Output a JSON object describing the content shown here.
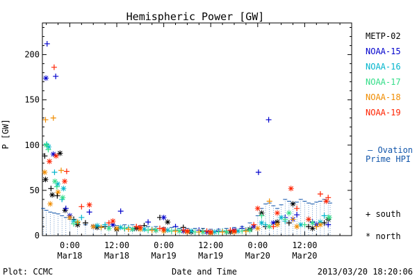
{
  "chart_data": {
    "type": "scatter",
    "title": "Hemispheric Power [GW]",
    "ylabel": "P [GW]",
    "xlabel": "Date and Time",
    "x_unit": "hours since 2013-03-18 00:00",
    "xlim": [
      -7,
      72
    ],
    "ylim": [
      0,
      235
    ],
    "y_ticks": [
      0,
      50,
      100,
      150,
      200
    ],
    "x_ticks": [
      {
        "x": 0,
        "time": "0:00",
        "date": "Mar18"
      },
      {
        "x": 12,
        "time": "12:00",
        "date": "Mar18"
      },
      {
        "x": 24,
        "time": "0:00",
        "date": "Mar19"
      },
      {
        "x": 36,
        "time": "12:00",
        "date": "Mar19"
      },
      {
        "x": 48,
        "time": "0:00",
        "date": "Mar20"
      },
      {
        "x": 60,
        "time": "12:00",
        "date": "Mar20"
      }
    ],
    "legend": [
      "METP-02",
      "NOAA-15",
      "NOAA-16",
      "NOAA-17",
      "NOAA-18",
      "NOAA-19"
    ],
    "ovation_label_1": "— Ovation",
    "ovation_label_2": "Prime HPI",
    "marker_south_label": "+ south",
    "marker_north_label": "* north",
    "ovation_prime_hpi": [
      [
        -6.8,
        30
      ],
      [
        -6,
        28
      ],
      [
        -5,
        26
      ],
      [
        -4,
        25
      ],
      [
        -3,
        24
      ],
      [
        -2,
        22
      ],
      [
        -1,
        20
      ],
      [
        0,
        18
      ],
      [
        2,
        14
      ],
      [
        4,
        12
      ],
      [
        6,
        11
      ],
      [
        8,
        10
      ],
      [
        10,
        10
      ],
      [
        12,
        11
      ],
      [
        14,
        12
      ],
      [
        16,
        12
      ],
      [
        18,
        11
      ],
      [
        20,
        10
      ],
      [
        22,
        10
      ],
      [
        24,
        9
      ],
      [
        26,
        9
      ],
      [
        28,
        8
      ],
      [
        30,
        8
      ],
      [
        32,
        8
      ],
      [
        34,
        8
      ],
      [
        36,
        7
      ],
      [
        38,
        7
      ],
      [
        40,
        8
      ],
      [
        42,
        9
      ],
      [
        44,
        10
      ],
      [
        46,
        14
      ],
      [
        48,
        22
      ],
      [
        49,
        30
      ],
      [
        50,
        35
      ],
      [
        51,
        36
      ],
      [
        52,
        33
      ],
      [
        53,
        30
      ],
      [
        54,
        34
      ],
      [
        55,
        40
      ],
      [
        56,
        38
      ],
      [
        57,
        36
      ],
      [
        58,
        37
      ],
      [
        59,
        40
      ],
      [
        60,
        38
      ],
      [
        61,
        36
      ],
      [
        62,
        35
      ],
      [
        63,
        37
      ],
      [
        64,
        38
      ],
      [
        65,
        40
      ],
      [
        66,
        38
      ],
      [
        66.5,
        36
      ]
    ],
    "series": [
      {
        "name": "METP-02",
        "color": "#000000",
        "south": [
          [
            -6.4,
            88
          ],
          [
            -4.8,
            52
          ],
          [
            -3.2,
            44
          ],
          [
            1,
            18
          ],
          [
            4,
            14
          ],
          [
            9,
            10
          ],
          [
            14,
            8
          ],
          [
            19,
            11
          ],
          [
            23,
            20
          ],
          [
            29,
            9
          ],
          [
            34,
            5
          ],
          [
            40,
            4
          ],
          [
            45,
            6
          ],
          [
            50,
            10
          ],
          [
            56,
            14
          ],
          [
            61,
            10
          ],
          [
            65,
            14
          ]
        ],
        "north": [
          [
            -6.2,
            62
          ],
          [
            -4.5,
            45
          ],
          [
            -2.5,
            91
          ],
          [
            -1.2,
            28
          ],
          [
            2,
            12
          ],
          [
            7,
            9
          ],
          [
            12,
            7
          ],
          [
            17,
            8
          ],
          [
            22,
            6
          ],
          [
            25,
            15
          ],
          [
            31,
            4
          ],
          [
            36,
            3
          ],
          [
            41,
            4
          ],
          [
            46,
            7
          ],
          [
            49,
            25
          ],
          [
            53,
            15
          ],
          [
            57,
            35
          ],
          [
            62,
            8
          ],
          [
            66,
            18
          ]
        ]
      },
      {
        "name": "NOAA-15",
        "color": "#0000cc",
        "south": [
          [
            -5.8,
            212
          ],
          [
            -3.6,
            176
          ],
          [
            -1,
            30
          ],
          [
            5,
            26
          ],
          [
            13,
            27
          ],
          [
            20,
            15
          ],
          [
            27,
            10
          ],
          [
            33,
            6
          ],
          [
            38,
            5
          ],
          [
            44,
            8
          ],
          [
            48.2,
            70
          ],
          [
            50.8,
            128
          ],
          [
            55,
            20
          ],
          [
            58,
            23
          ],
          [
            62,
            15
          ],
          [
            66,
            12
          ]
        ],
        "north": [
          [
            -6.1,
            174
          ],
          [
            -4.2,
            90
          ],
          [
            0,
            22
          ],
          [
            6,
            10
          ],
          [
            11,
            12
          ],
          [
            16,
            7
          ],
          [
            24,
            20
          ],
          [
            29,
            5
          ],
          [
            35,
            4
          ],
          [
            42,
            6
          ],
          [
            47,
            10
          ],
          [
            52,
            14
          ],
          [
            57,
            18
          ],
          [
            63,
            12
          ]
        ]
      },
      {
        "name": "NOAA-16",
        "color": "#00b4cc",
        "south": [
          [
            -5.9,
            101
          ],
          [
            -3.9,
            70
          ],
          [
            -2,
            40
          ],
          [
            3,
            20
          ],
          [
            9,
            12
          ],
          [
            15,
            9
          ],
          [
            21,
            7
          ],
          [
            27,
            6
          ],
          [
            33,
            4
          ],
          [
            39,
            5
          ],
          [
            45,
            6
          ],
          [
            50,
            12
          ],
          [
            55,
            16
          ],
          [
            61,
            18
          ],
          [
            65,
            22
          ]
        ],
        "north": [
          [
            -5.4,
            98
          ],
          [
            -3.1,
            57
          ],
          [
            -1.6,
            52
          ],
          [
            1,
            16
          ],
          [
            7,
            11
          ],
          [
            13,
            9
          ],
          [
            19,
            7
          ],
          [
            25,
            6
          ],
          [
            31,
            5
          ],
          [
            37,
            4
          ],
          [
            43,
            5
          ],
          [
            49,
            14
          ],
          [
            54,
            20
          ],
          [
            59,
            12
          ],
          [
            64,
            15
          ]
        ]
      },
      {
        "name": "NOAA-17",
        "color": "#33dd88",
        "south": [
          [
            -5.5,
            95
          ],
          [
            -3.3,
            54
          ],
          [
            1,
            13
          ],
          [
            8,
            9
          ],
          [
            14,
            8
          ],
          [
            20,
            6
          ],
          [
            26,
            5
          ],
          [
            32,
            4
          ],
          [
            38,
            4
          ],
          [
            44,
            5
          ],
          [
            49,
            22
          ],
          [
            55,
            18
          ],
          [
            60,
            12
          ],
          [
            66,
            20
          ]
        ],
        "north": [
          [
            -6.0,
            100
          ],
          [
            -3.8,
            60
          ],
          [
            -1.8,
            42
          ],
          [
            2,
            15
          ],
          [
            10,
            8
          ],
          [
            16,
            7
          ],
          [
            22,
            6
          ],
          [
            28,
            5
          ],
          [
            34,
            4
          ],
          [
            40,
            4
          ],
          [
            46,
            6
          ],
          [
            51,
            10
          ],
          [
            56,
            25
          ],
          [
            62,
            14
          ],
          [
            66.3,
            20
          ]
        ]
      },
      {
        "name": "NOAA-18",
        "color": "#f08c00",
        "south": [
          [
            -6.2,
            128
          ],
          [
            -4.2,
            130
          ],
          [
            -2.2,
            72
          ],
          [
            2,
            15
          ],
          [
            8,
            9
          ],
          [
            15,
            7
          ],
          [
            21,
            6
          ],
          [
            27,
            5
          ],
          [
            33,
            4
          ],
          [
            39,
            4
          ],
          [
            45,
            5
          ],
          [
            51,
            38
          ],
          [
            57,
            18
          ],
          [
            63,
            10
          ]
        ],
        "north": [
          [
            -6.4,
            70
          ],
          [
            -5.0,
            35
          ],
          [
            -3.0,
            48
          ],
          [
            0,
            20
          ],
          [
            6,
            10
          ],
          [
            12,
            8
          ],
          [
            18,
            7
          ],
          [
            24,
            5
          ],
          [
            30,
            4
          ],
          [
            36,
            3
          ],
          [
            42,
            4
          ],
          [
            48,
            8
          ],
          [
            53,
            12
          ],
          [
            58,
            10
          ],
          [
            64,
            12
          ]
        ]
      },
      {
        "name": "NOAA-19",
        "color": "#ff2200",
        "south": [
          [
            -4.0,
            186
          ],
          [
            -0.8,
            71
          ],
          [
            3,
            32
          ],
          [
            10,
            14
          ],
          [
            17,
            10
          ],
          [
            23,
            8
          ],
          [
            29,
            6
          ],
          [
            35,
            5
          ],
          [
            41,
            6
          ],
          [
            47,
            12
          ],
          [
            52,
            10
          ],
          [
            58,
            30
          ],
          [
            64,
            46
          ],
          [
            66,
            42
          ]
        ],
        "north": [
          [
            -5.2,
            82
          ],
          [
            -3.5,
            88
          ],
          [
            -1.3,
            60
          ],
          [
            5,
            34
          ],
          [
            11,
            16
          ],
          [
            18,
            9
          ],
          [
            24,
            7
          ],
          [
            30,
            5
          ],
          [
            36,
            4
          ],
          [
            42,
            5
          ],
          [
            48,
            30
          ],
          [
            53,
            25
          ],
          [
            56.5,
            52
          ],
          [
            61,
            18
          ],
          [
            65.5,
            38
          ]
        ]
      }
    ]
  },
  "footer": {
    "plot_credit": "Plot: CCMC",
    "timestamp": "2013/03/20 18:20:06"
  }
}
